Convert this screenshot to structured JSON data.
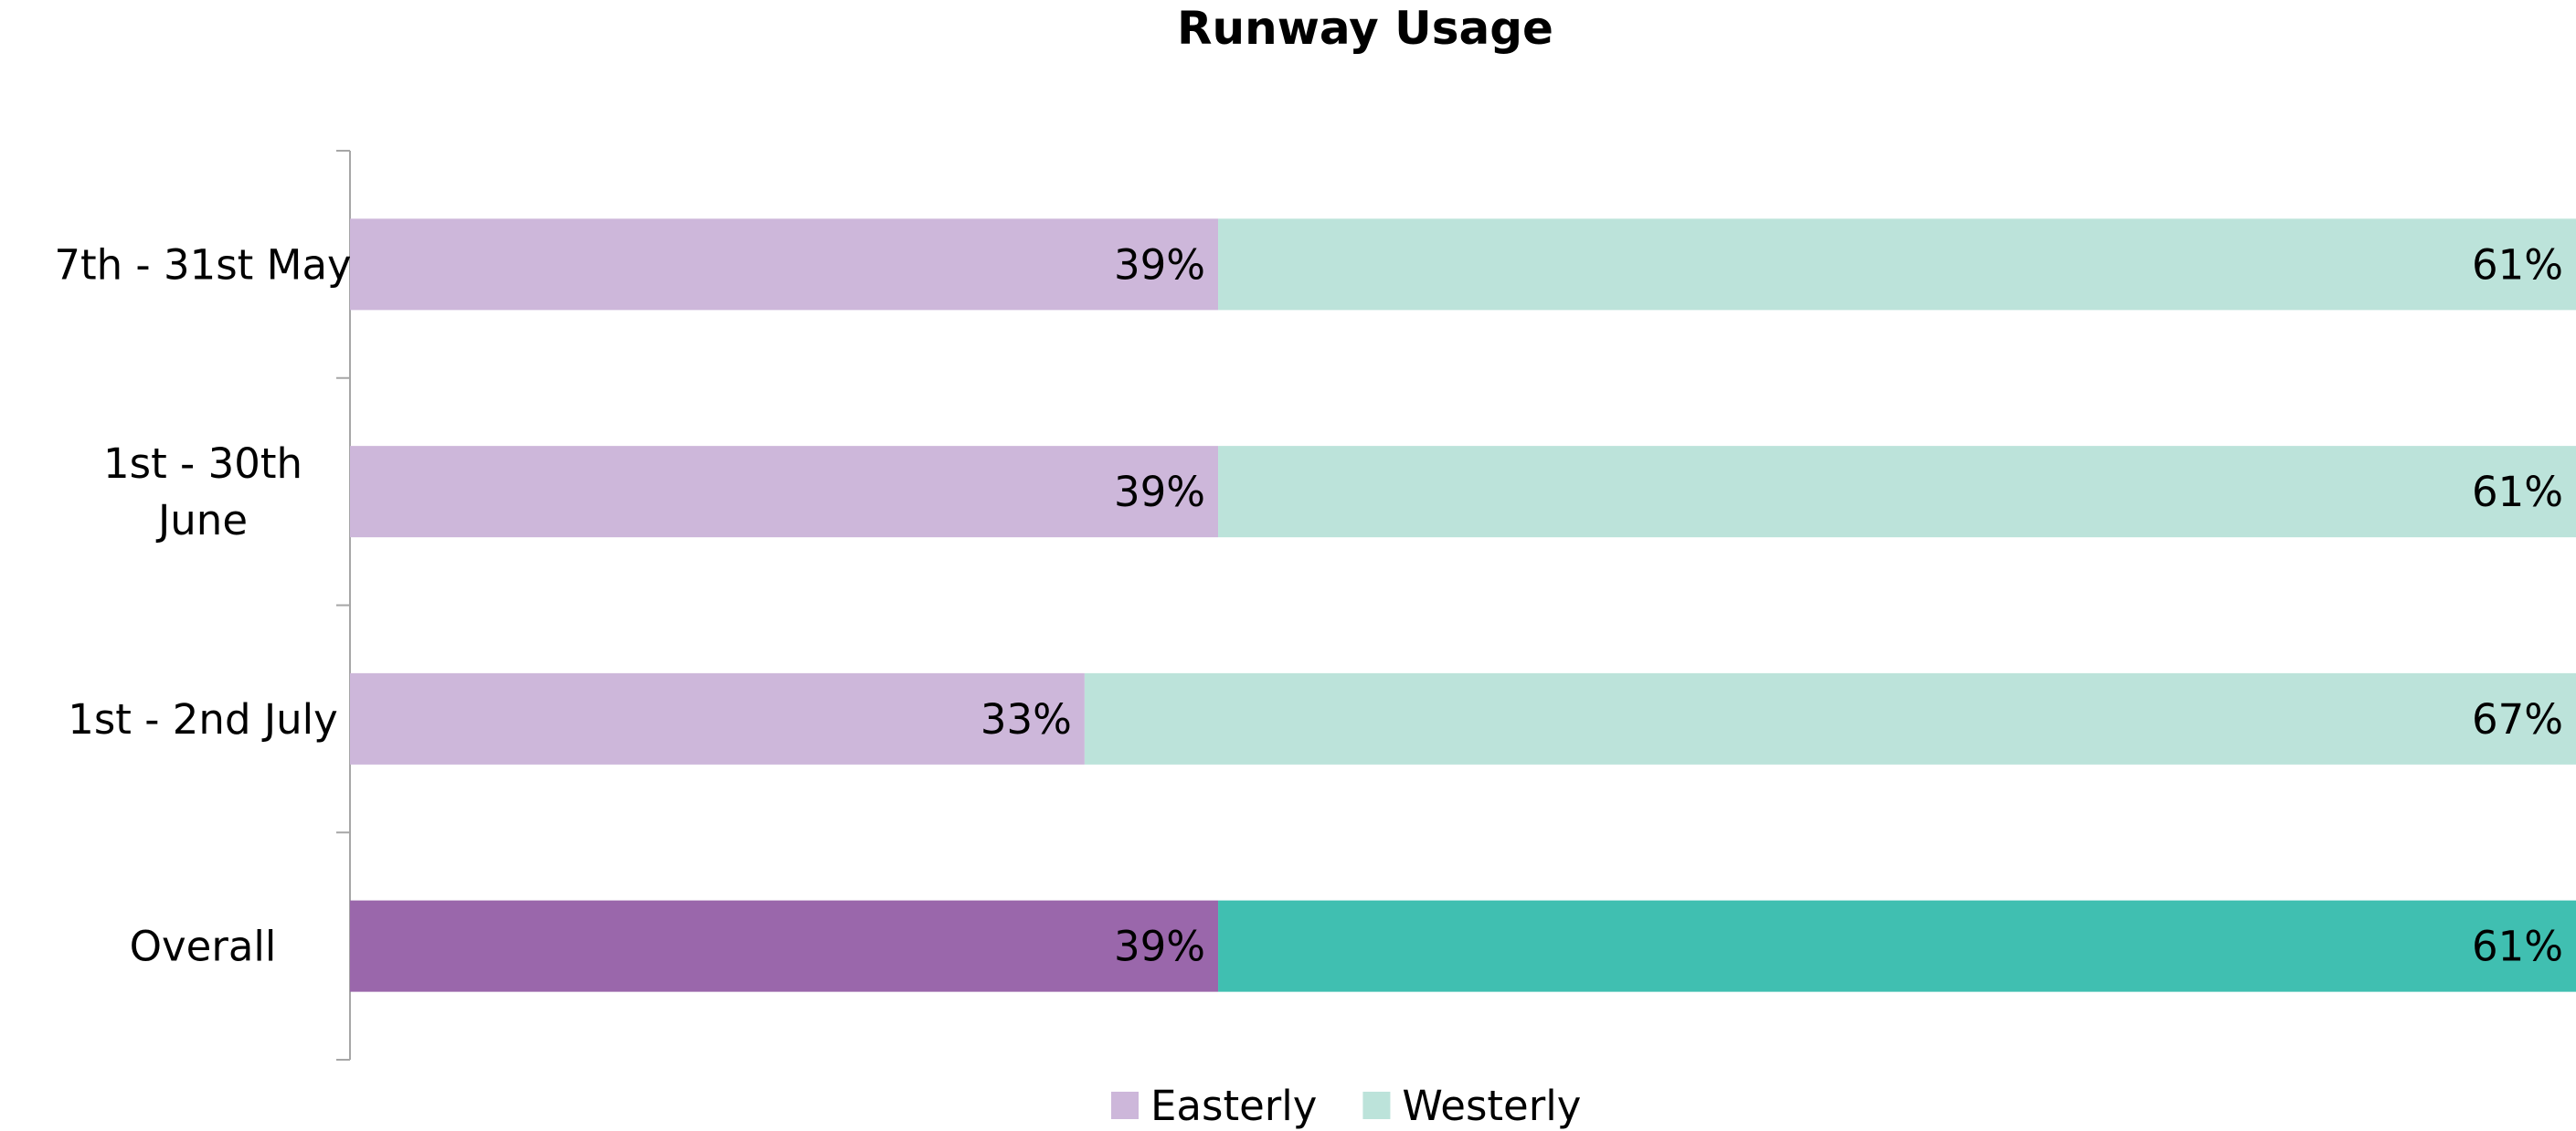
{
  "chart_data": {
    "type": "bar",
    "orientation": "horizontal",
    "stacked": "percent",
    "title": "Runway Usage",
    "xlabel": "",
    "ylabel": "",
    "xlim": [
      0,
      100
    ],
    "grid": false,
    "legend_position": "bottom",
    "categories": [
      "7th - 31st May",
      "1st - 30th June",
      "1st - 2nd July",
      "Overall"
    ],
    "series": [
      {
        "name": "Easterly",
        "values": [
          39,
          39,
          33,
          39
        ],
        "labels": [
          "39%",
          "39%",
          "33%",
          "39%"
        ],
        "colors": [
          "#cdb7da",
          "#cdb7da",
          "#cdb7da",
          "#9a67ab"
        ]
      },
      {
        "name": "Westerly",
        "values": [
          61,
          61,
          67,
          61
        ],
        "labels": [
          "61%",
          "61%",
          "67%",
          "61%"
        ],
        "colors": [
          "#bce3da",
          "#bce3da",
          "#bce3da",
          "#40bfb1"
        ]
      }
    ]
  }
}
